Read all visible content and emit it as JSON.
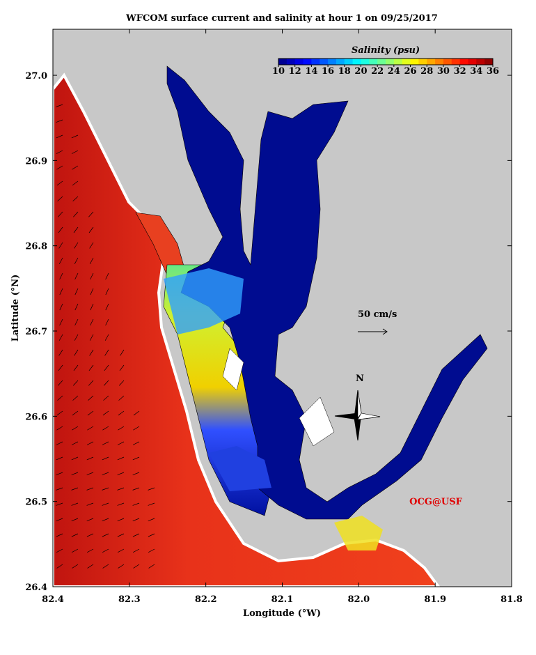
{
  "map": {
    "title": "WFCOM surface current and salinity at hour 1 on 09/25/2017",
    "xlabel": "Longitude (°W)",
    "ylabel": "Latitude (°N)",
    "xlim": [
      82.4,
      81.8
    ],
    "ylim": [
      26.4,
      27.054
    ],
    "xticks": [
      82.4,
      82.3,
      82.2,
      82.1,
      {
        "value": 82.0,
        "label": "82.0"
      },
      81.9,
      81.8
    ],
    "yticks": [
      26.4,
      26.5,
      26.6,
      26.7,
      26.8,
      26.9,
      {
        "value": 27.0,
        "label": "27.0"
      }
    ],
    "colorbar": {
      "title": "Salinity (psu)",
      "colormap": "jet",
      "ticks": [
        10,
        12,
        14,
        16,
        18,
        20,
        22,
        24,
        26,
        28,
        30,
        32,
        34,
        36
      ]
    },
    "scale_label": "50 cm/s",
    "north_label": "N",
    "credit": "OCG@USF"
  }
}
